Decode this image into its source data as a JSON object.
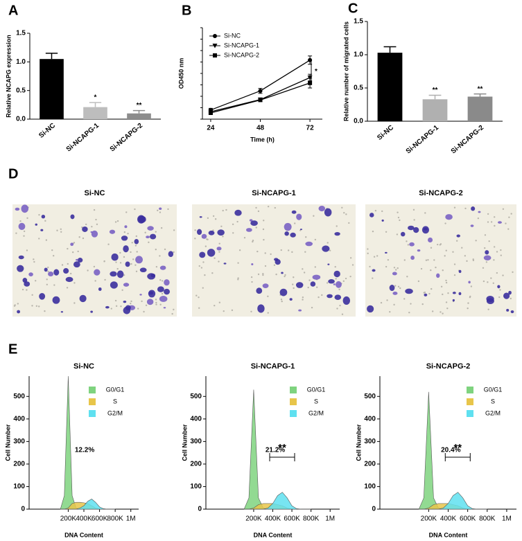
{
  "panel_labels": [
    "A",
    "B",
    "C",
    "D",
    "E"
  ],
  "chart_data": [
    {
      "type": "bar",
      "ylabel": "Relative NCAPG expression",
      "categories": [
        "Si-NC",
        "Si-NCAPG-1",
        "Si-NCAPG-2"
      ],
      "values": [
        1.05,
        0.21,
        0.1
      ],
      "errors": [
        0.1,
        0.08,
        0.05
      ],
      "colors": [
        "#000000",
        "#bdbdbd",
        "#8c8c8c"
      ],
      "annotations": [
        null,
        "*",
        "**"
      ],
      "ylim": [
        0,
        1.5
      ],
      "yticks": [
        {
          "value": 0,
          "label": "0.0"
        },
        0.5,
        {
          "value": 1,
          "label": "1.0"
        },
        1.5
      ]
    },
    {
      "type": "line",
      "ylabel": "OD450 nm",
      "xlabel": "Time (h)",
      "x": [
        24,
        48,
        72
      ],
      "xlim": [
        20,
        78
      ],
      "xticks": [
        24,
        48,
        72
      ],
      "ylim": [
        0,
        2.2
      ],
      "series": [
        {
          "name": "Si-NC",
          "color": "#000000",
          "marker": "circle",
          "values": [
            0.22,
            0.68,
            1.42
          ],
          "errors": [
            0.04,
            0.06,
            0.1
          ]
        },
        {
          "name": "Si-NCAPG-1",
          "color": "#000000",
          "marker": "triangle",
          "values": [
            0.18,
            0.47,
            1.0
          ],
          "errors": [
            0.03,
            0.03,
            0.08
          ]
        },
        {
          "name": "Si-NCAPG-2",
          "color": "#000000",
          "marker": "square",
          "values": [
            0.15,
            0.46,
            0.87
          ],
          "errors": [
            0.03,
            0.03,
            0.12
          ]
        }
      ],
      "annotations": [
        "*"
      ]
    },
    {
      "type": "bar",
      "ylabel": "Relative number of migrated cells",
      "categories": [
        "Si-NC",
        "Si-NCAPG-1",
        "Si-NCAPG-2"
      ],
      "values": [
        1.03,
        0.33,
        0.37
      ],
      "errors": [
        0.09,
        0.06,
        0.04
      ],
      "colors": [
        "#000000",
        "#b0b0b0",
        "#8a8a8a"
      ],
      "annotations": [
        null,
        "**",
        "**"
      ],
      "ylim": [
        0,
        1.5
      ],
      "yticks": [
        {
          "value": 0,
          "label": "0.0"
        },
        0.5,
        {
          "value": 1,
          "label": "1.0"
        },
        1.5
      ]
    },
    {
      "type": "area",
      "title": "Si-NC",
      "xlabel": "DNA Content",
      "ylabel": "Cell Number",
      "x": [
        100000,
        150000,
        200000,
        250000,
        300000,
        350000,
        400000,
        450000,
        500000,
        550000,
        600000,
        650000,
        700000,
        750000,
        800000
      ],
      "series": [
        {
          "name": "G0/G1",
          "color": "#7fd37f",
          "values": [
            0,
            60,
            590,
            60,
            5,
            0,
            0,
            0,
            0,
            0,
            0,
            0,
            0,
            0,
            0
          ]
        },
        {
          "name": "S",
          "color": "#e8c54a",
          "values": [
            0,
            0,
            5,
            25,
            30,
            30,
            28,
            25,
            15,
            5,
            0,
            0,
            0,
            0,
            0
          ]
        },
        {
          "name": "G2/M",
          "color": "#5fe0f0",
          "values": [
            0,
            0,
            0,
            0,
            0,
            5,
            15,
            35,
            45,
            30,
            10,
            2,
            0,
            0,
            0
          ]
        }
      ],
      "annotations": [
        "12.2%"
      ],
      "xlim": [
        -300000,
        1100000
      ],
      "ylim": [
        0,
        590
      ],
      "xticks": [
        {
          "value": 200000,
          "label": "200K"
        },
        {
          "value": 400000,
          "label": "400K"
        },
        {
          "value": 600000,
          "label": "600K"
        },
        {
          "value": 800000,
          "label": "800K"
        },
        {
          "value": 1000000,
          "label": "1M"
        }
      ],
      "yticks": [
        0,
        100,
        200,
        300,
        400,
        500
      ]
    },
    {
      "type": "area",
      "title": "Si-NCAPG-1",
      "xlabel": "DNA Content",
      "ylabel": "Cell Number",
      "x": [
        100000,
        150000,
        200000,
        250000,
        300000,
        350000,
        400000,
        450000,
        500000,
        550000,
        600000,
        650000,
        700000,
        750000,
        800000
      ],
      "series": [
        {
          "name": "G0/G1",
          "color": "#7fd37f",
          "values": [
            0,
            50,
            530,
            50,
            5,
            0,
            0,
            0,
            0,
            0,
            0,
            0,
            0,
            0,
            0
          ]
        },
        {
          "name": "S",
          "color": "#e8c54a",
          "values": [
            0,
            0,
            5,
            20,
            25,
            25,
            25,
            20,
            15,
            5,
            0,
            0,
            0,
            0,
            0
          ]
        },
        {
          "name": "G2/M",
          "color": "#5fe0f0",
          "values": [
            0,
            0,
            0,
            0,
            0,
            5,
            25,
            60,
            75,
            50,
            15,
            2,
            0,
            0,
            0
          ]
        }
      ],
      "annotations": [
        "**",
        "21.2%"
      ],
      "xlim": [
        -300000,
        1100000
      ],
      "ylim": [
        0,
        590
      ],
      "xticks": [
        {
          "value": 200000,
          "label": "200K"
        },
        {
          "value": 400000,
          "label": "400K"
        },
        {
          "value": 600000,
          "label": "600K"
        },
        {
          "value": 800000,
          "label": "800K"
        },
        {
          "value": 1000000,
          "label": "1M"
        }
      ],
      "yticks": [
        0,
        100,
        200,
        300,
        400,
        500
      ]
    },
    {
      "type": "area",
      "title": "Si-NCAPG-2",
      "xlabel": "DNA Content",
      "ylabel": "Cell Number",
      "x": [
        100000,
        150000,
        200000,
        250000,
        300000,
        350000,
        400000,
        450000,
        500000,
        550000,
        600000,
        650000,
        700000,
        750000,
        800000
      ],
      "series": [
        {
          "name": "G0/G1",
          "color": "#7fd37f",
          "values": [
            0,
            50,
            520,
            50,
            5,
            0,
            0,
            0,
            0,
            0,
            0,
            0,
            0,
            0,
            0
          ]
        },
        {
          "name": "S",
          "color": "#e8c54a",
          "values": [
            0,
            0,
            5,
            20,
            25,
            25,
            25,
            20,
            15,
            5,
            0,
            0,
            0,
            0,
            0
          ]
        },
        {
          "name": "G2/M",
          "color": "#5fe0f0",
          "values": [
            0,
            0,
            0,
            0,
            0,
            5,
            25,
            60,
            75,
            50,
            15,
            2,
            0,
            0,
            0
          ]
        }
      ],
      "annotations": [
        "**",
        "20.4%"
      ],
      "xlim": [
        -300000,
        1100000
      ],
      "ylim": [
        0,
        590
      ],
      "xticks": [
        {
          "value": 200000,
          "label": "200K"
        },
        {
          "value": 400000,
          "label": "400K"
        },
        {
          "value": 600000,
          "label": "600K"
        },
        {
          "value": 800000,
          "label": "800K"
        },
        {
          "value": 1000000,
          "label": "1M"
        }
      ],
      "yticks": [
        0,
        100,
        200,
        300,
        400,
        500
      ]
    }
  ],
  "image_panel": {
    "titles": [
      "Si-NC",
      "Si-NCAPG-1",
      "Si-NCAPG-2"
    ]
  }
}
